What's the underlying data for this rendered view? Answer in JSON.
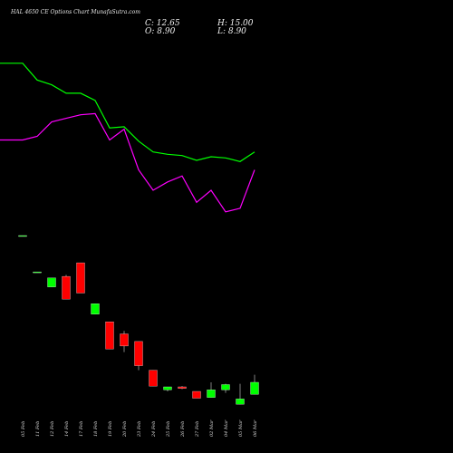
{
  "header": {
    "title": "HAL 4650  CE Options  Chart MunafaSutra.com",
    "c_label": "C: 12.65",
    "o_label": "O: 8.90",
    "h_label": "H: 15.00",
    "l_label": "L: 8.90"
  },
  "chart_data": {
    "type": "candlestick",
    "categories": [
      "05 Feb",
      "11 Feb",
      "12 Feb",
      "14 Feb",
      "17 Feb",
      "18 Feb",
      "19 Feb",
      "20 Feb",
      "23 Feb",
      "24 Feb",
      "25 Feb",
      "26 Feb",
      "27 Feb",
      "02 Mar",
      "04 Mar",
      "05 Mar",
      "06 Mar"
    ],
    "ohlc": [
      {
        "open": 100.0,
        "high": 100.0,
        "low": 100.0,
        "close": 100.0
      },
      {
        "open": 76.0,
        "high": 76.0,
        "low": 76.0,
        "close": 76.0
      },
      {
        "open": 66.0,
        "high": 72.0,
        "low": 66.0,
        "close": 72.0
      },
      {
        "open": 73.0,
        "high": 74.0,
        "low": 58.0,
        "close": 58.0
      },
      {
        "open": 82.0,
        "high": 82.0,
        "low": 62.0,
        "close": 62.0
      },
      {
        "open": 48.0,
        "high": 55.0,
        "low": 48.0,
        "close": 55.0
      },
      {
        "open": 43.0,
        "high": 43.0,
        "low": 25.0,
        "close": 25.0
      },
      {
        "open": 35.0,
        "high": 37.0,
        "low": 23.0,
        "close": 27.0
      },
      {
        "open": 30.0,
        "high": 30.0,
        "low": 11.0,
        "close": 14.0
      },
      {
        "open": 11.0,
        "high": 11.0,
        "low": 0.5,
        "close": 0.5
      },
      {
        "open": -2.0,
        "high": -1.0,
        "low": -3.0,
        "close": 0.0
      },
      {
        "open": 0.0,
        "high": 0.5,
        "low": -1.5,
        "close": -1.0
      },
      {
        "open": -3.0,
        "high": -3.0,
        "low": -7.5,
        "close": -7.5
      },
      {
        "open": -7.0,
        "high": 3.0,
        "low": -7.0,
        "close": -2.0
      },
      {
        "open": -2.0,
        "high": 2.0,
        "low": -4.0,
        "close": 1.5
      },
      {
        "open": -11.5,
        "high": 2.0,
        "low": -11.5,
        "close": -8.0
      },
      {
        "open": -5.0,
        "high": 8.0,
        "low": -5.0,
        "close": 3.0
      }
    ],
    "ma_series": [
      {
        "color": "#00ff00",
        "values": [
          270,
          256,
          252,
          245,
          245,
          239,
          216,
          217,
          205,
          196,
          194,
          193,
          189,
          192,
          191,
          188,
          196
        ]
      },
      {
        "color": "#ff00ff",
        "values": [
          206,
          209,
          221,
          224,
          227,
          228,
          206,
          215,
          181,
          164,
          171,
          176,
          154,
          164,
          146,
          149,
          181
        ]
      }
    ],
    "colors": {
      "up": "#00ff00",
      "down": "#ff0000",
      "outline": "#ffffff",
      "wick": "#808080",
      "background": "#000000"
    },
    "grid": false
  }
}
